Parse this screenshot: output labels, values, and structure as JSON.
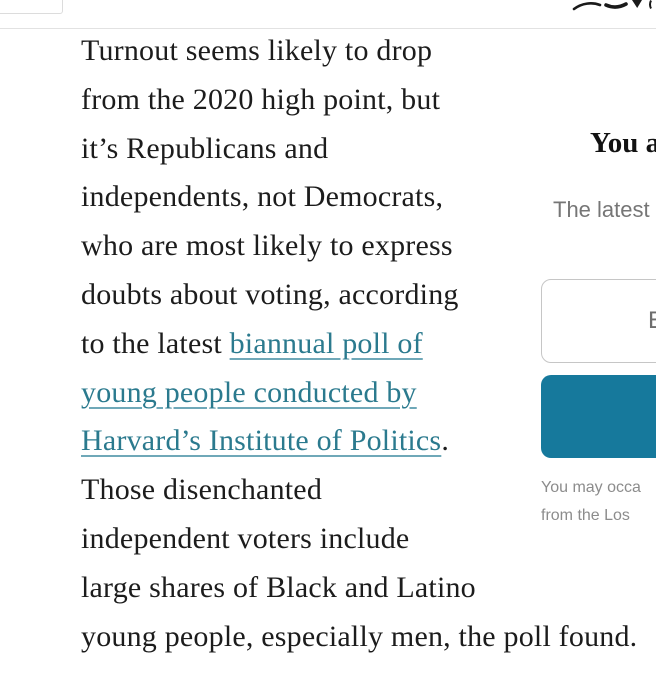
{
  "page": {
    "background": "#ffffff",
    "divider_color": "#e2e2e2"
  },
  "article": {
    "text_color": "#1c1c1c",
    "link_color": "#2b7a8e",
    "link_text": "biannual poll of young people conducted by Harvard’s Institute of Politics",
    "lines": [
      [
        {
          "t": "Turnout seems likely to drop"
        }
      ],
      [
        {
          "t": "from the 2020 high point, but"
        }
      ],
      [
        {
          "t": "it’s Republicans and"
        }
      ],
      [
        {
          "t": "independents, not Democrats,"
        }
      ],
      [
        {
          "t": "who are most likely to express"
        }
      ],
      [
        {
          "t": "doubts about voting, according"
        }
      ],
      [
        {
          "t": "to the latest "
        },
        {
          "t": "biannual poll of",
          "link": true
        }
      ],
      [
        {
          "t": "young people conducted by",
          "link": true
        }
      ],
      [
        {
          "t": "Harvard’s Institute of Politics",
          "link": true
        },
        {
          "t": "."
        }
      ],
      [
        {
          "t": "Those disenchanted"
        }
      ],
      [
        {
          "t": "independent voters include"
        }
      ],
      [
        {
          "t": "large shares of Black and Latino"
        }
      ],
      [
        {
          "t": "young people, especially men, the poll found."
        }
      ]
    ]
  },
  "newsletter": {
    "heading": "You a",
    "subtext": "The latest",
    "email_input": {
      "value": "",
      "placeholder": "E"
    },
    "signup_button": {
      "label": "",
      "color": "#16799c"
    },
    "disclaimer_lines": [
      "You may occa",
      "from the Los "
    ]
  },
  "icons": {
    "top_right": "clipped-icon-fragments"
  }
}
